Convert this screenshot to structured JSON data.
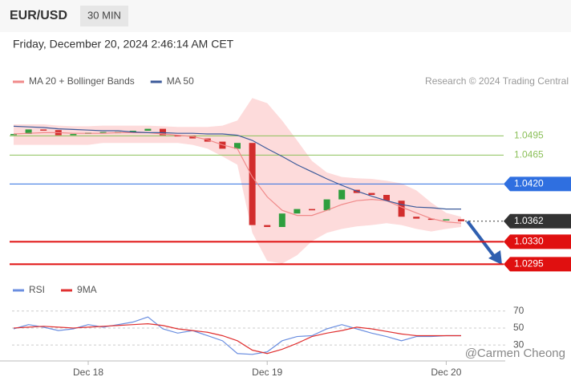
{
  "chart_data": [
    {
      "type": "candlestick",
      "title": "EUR/USD",
      "timeframe": "30 MIN",
      "subtitle": "Friday, December 20, 2024 2:46:14 AM CET",
      "source": "Research © 2024 Trading Central",
      "xlim": [
        0,
        30
      ],
      "ylim": [
        1.0288,
        1.0563
      ],
      "close": {
        "color_up": "#2e9e3e",
        "color_down": "#d22d2d",
        "values": [
          1.0498,
          1.0505,
          1.0504,
          1.0496,
          1.0498,
          1.05,
          1.0501,
          1.0501,
          1.0503,
          1.0506,
          1.0496,
          1.0495,
          1.0491,
          1.0486,
          1.0475,
          1.0484,
          1.0356,
          1.0353,
          1.0374,
          1.0381,
          1.0379,
          1.0396,
          1.0411,
          1.0406,
          1.0403,
          1.0394,
          1.0369,
          1.0366,
          1.0365,
          1.0365,
          1.0362
        ]
      },
      "series": [
        {
          "name": "MA 20 + Bollinger Bands",
          "color": "#f08a8a",
          "band_color": "#fdd5d5",
          "values": [
            1.0498,
            1.0499,
            1.05,
            1.05,
            1.0499,
            1.0499,
            1.0499,
            1.05,
            1.05,
            1.05,
            1.0498,
            1.0496,
            1.0494,
            1.0489,
            1.0481,
            1.0475,
            1.0431,
            1.04,
            1.0379,
            1.0371,
            1.0371,
            1.0379,
            1.0388,
            1.0394,
            1.0396,
            1.0394,
            1.0384,
            1.0375,
            1.0366,
            1.0361,
            1.0359
          ],
          "upper": [
            1.0513,
            1.0513,
            1.0513,
            1.0511,
            1.051,
            1.051,
            1.0511,
            1.0511,
            1.0511,
            1.0511,
            1.051,
            1.0509,
            1.0509,
            1.0509,
            1.0511,
            1.0519,
            1.0554,
            1.0546,
            1.0519,
            1.0488,
            1.0456,
            1.0438,
            1.0431,
            1.0429,
            1.0428,
            1.0425,
            1.0421,
            1.041,
            1.0391,
            1.0375,
            1.0369
          ],
          "lower": [
            1.0481,
            1.0481,
            1.0481,
            1.0481,
            1.0481,
            1.0481,
            1.0484,
            1.0484,
            1.0484,
            1.0484,
            1.0484,
            1.0484,
            1.0481,
            1.0475,
            1.0463,
            1.045,
            1.0344,
            1.03,
            1.0296,
            1.0309,
            1.0331,
            1.0344,
            1.035,
            1.0354,
            1.0356,
            1.0359,
            1.0356,
            1.035,
            1.0346,
            1.035,
            1.0353
          ]
        },
        {
          "name": "MA 50",
          "color": "#3c5a9a",
          "values": [
            1.051,
            1.0509,
            1.0508,
            1.0506,
            1.0505,
            1.0504,
            1.0503,
            1.0503,
            1.0501,
            1.05,
            1.05,
            1.0499,
            1.0499,
            1.0498,
            1.0498,
            1.0496,
            1.0488,
            1.0475,
            1.0463,
            1.045,
            1.0439,
            1.0428,
            1.0418,
            1.0409,
            1.0401,
            1.0394,
            1.0388,
            1.0384,
            1.0383,
            1.0381,
            1.0381
          ]
        }
      ],
      "levels": [
        {
          "value": 1.0495,
          "label": "1.0495",
          "color": "#8cc05a",
          "boxed": false,
          "full": true
        },
        {
          "value": 1.0465,
          "label": "1.0465",
          "color": "#8cc05a",
          "boxed": false,
          "full": true
        },
        {
          "value": 1.042,
          "label": "1.0420",
          "color": "#2f6fe0",
          "boxed": true,
          "full": true
        },
        {
          "value": 1.0362,
          "label": "1.0362",
          "color": "#333333",
          "boxed": true,
          "full": false
        },
        {
          "value": 1.033,
          "label": "1.0330",
          "color": "#e01010",
          "boxed": true,
          "full": true
        },
        {
          "value": 1.0295,
          "label": "1.0295",
          "color": "#e01010",
          "boxed": true,
          "full": true
        }
      ]
    },
    {
      "type": "line",
      "xlim": [
        0,
        30
      ],
      "ylim": [
        16,
        82
      ],
      "yticks": [
        70,
        50,
        30
      ],
      "xticks": [
        {
          "value": 5,
          "label": "Dec 18"
        },
        {
          "value": 17,
          "label": "Dec 19"
        },
        {
          "value": 29,
          "label": "Dec 20"
        }
      ],
      "series": [
        {
          "name": "RSI",
          "color": "#6a8ee0",
          "values": [
            49,
            54,
            51,
            47,
            49,
            54,
            51,
            54,
            57,
            63,
            49,
            44,
            47,
            41,
            35,
            20,
            19,
            22,
            35,
            40,
            41,
            49,
            54,
            49,
            44,
            40,
            35,
            40,
            40,
            41,
            41
          ]
        },
        {
          "name": "9MA",
          "color": "#e03030",
          "values": [
            50,
            51,
            52,
            51,
            50,
            51,
            52,
            53,
            54,
            55,
            53,
            49,
            47,
            45,
            41,
            35,
            24,
            20,
            25,
            32,
            40,
            44,
            47,
            51,
            49,
            46,
            43,
            41,
            41,
            41,
            41
          ]
        }
      ]
    }
  ],
  "watermark": "@Carmen Cheong"
}
